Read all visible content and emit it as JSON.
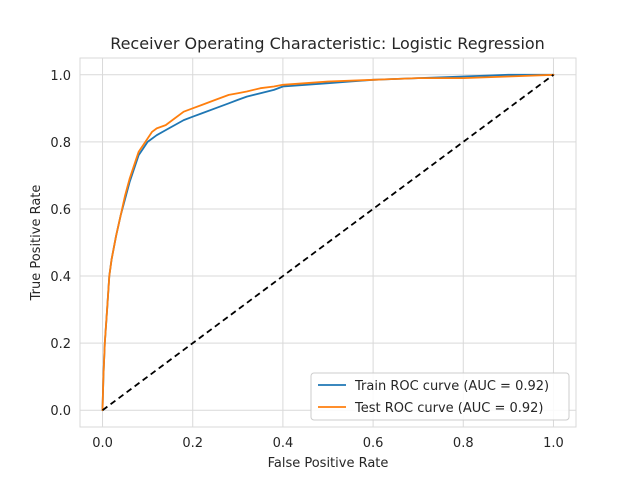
{
  "chart_data": {
    "type": "line",
    "title": "Receiver Operating Characteristic: Logistic Regression",
    "xlabel": "False Positive Rate",
    "ylabel": "True Positive Rate",
    "xlim": [
      -0.05,
      1.05
    ],
    "ylim": [
      -0.05,
      1.05
    ],
    "xticks": [
      0.0,
      0.2,
      0.4,
      0.6,
      0.8,
      1.0
    ],
    "yticks": [
      0.0,
      0.2,
      0.4,
      0.6,
      0.8,
      1.0
    ],
    "xtick_labels": [
      "0.0",
      "0.2",
      "0.4",
      "0.6",
      "0.8",
      "1.0"
    ],
    "ytick_labels": [
      "0.0",
      "0.2",
      "0.4",
      "0.6",
      "0.8",
      "1.0"
    ],
    "grid": true,
    "legend_position": "lower-right",
    "series": [
      {
        "name": "Train ROC curve (AUC = 0.92)",
        "color": "#1f77b4",
        "x": [
          0.0,
          0.002,
          0.005,
          0.01,
          0.015,
          0.02,
          0.03,
          0.04,
          0.05,
          0.06,
          0.07,
          0.08,
          0.09,
          0.1,
          0.12,
          0.14,
          0.16,
          0.18,
          0.2,
          0.22,
          0.25,
          0.28,
          0.3,
          0.32,
          0.35,
          0.38,
          0.4,
          0.45,
          0.5,
          0.55,
          0.6,
          0.7,
          0.8,
          0.9,
          1.0
        ],
        "y": [
          0.0,
          0.1,
          0.2,
          0.3,
          0.4,
          0.45,
          0.52,
          0.58,
          0.63,
          0.68,
          0.72,
          0.76,
          0.78,
          0.8,
          0.82,
          0.835,
          0.85,
          0.865,
          0.875,
          0.885,
          0.9,
          0.915,
          0.925,
          0.935,
          0.945,
          0.955,
          0.965,
          0.97,
          0.975,
          0.98,
          0.985,
          0.99,
          0.995,
          1.0,
          1.0
        ]
      },
      {
        "name": "Test ROC curve (AUC = 0.92)",
        "color": "#ff7f0e",
        "x": [
          0.0,
          0.002,
          0.005,
          0.01,
          0.015,
          0.02,
          0.03,
          0.04,
          0.05,
          0.06,
          0.07,
          0.08,
          0.09,
          0.1,
          0.11,
          0.12,
          0.14,
          0.16,
          0.18,
          0.2,
          0.22,
          0.25,
          0.28,
          0.3,
          0.32,
          0.35,
          0.38,
          0.4,
          0.45,
          0.5,
          0.6,
          0.7,
          0.8,
          0.9,
          1.0
        ],
        "y": [
          0.0,
          0.1,
          0.2,
          0.3,
          0.4,
          0.45,
          0.52,
          0.58,
          0.64,
          0.69,
          0.73,
          0.77,
          0.79,
          0.81,
          0.83,
          0.84,
          0.85,
          0.87,
          0.89,
          0.9,
          0.91,
          0.925,
          0.94,
          0.945,
          0.95,
          0.96,
          0.965,
          0.97,
          0.975,
          0.98,
          0.985,
          0.99,
          0.99,
          0.995,
          1.0
        ]
      }
    ],
    "reference_line": {
      "x": [
        0.0,
        1.0
      ],
      "y": [
        0.0,
        1.0
      ],
      "color": "#000000",
      "style": "dashed"
    }
  }
}
